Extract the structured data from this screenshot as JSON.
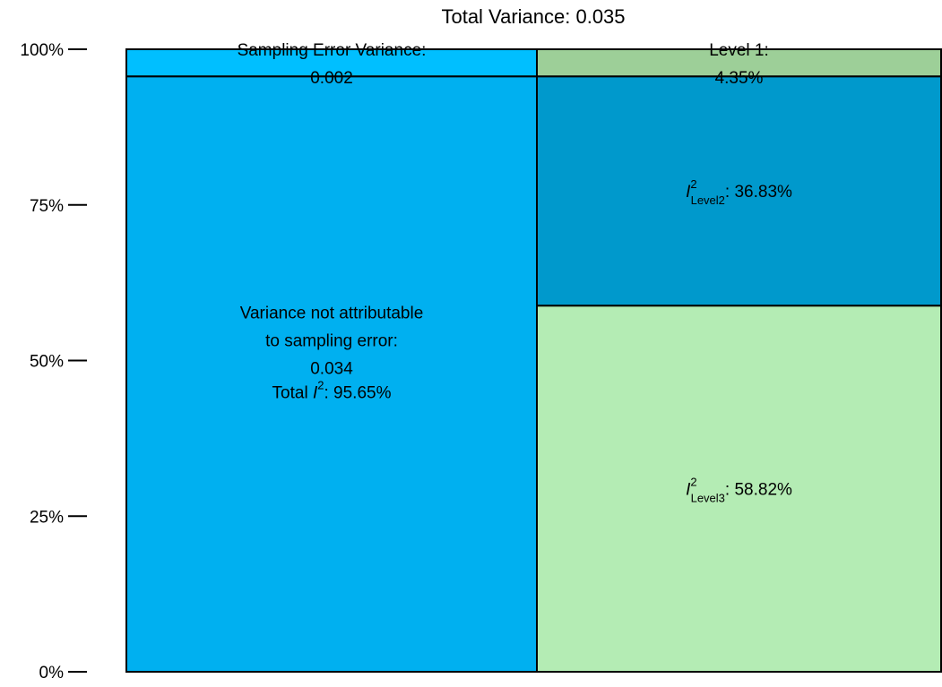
{
  "chart_data": {
    "type": "stacked-columns",
    "title": "Total Variance: 0.035",
    "ylim": [
      0,
      100
    ],
    "yticks": [
      {
        "value": 0,
        "label": "0%"
      },
      {
        "value": 25,
        "label": "25%"
      },
      {
        "value": 50,
        "label": "50%"
      },
      {
        "value": 75,
        "label": "75%"
      },
      {
        "value": 100,
        "label": "100%"
      }
    ],
    "columns": [
      {
        "segments": [
          {
            "value": 95.65,
            "color": "#00b0f0",
            "lines": [
              "Variance not attributable",
              "to sampling error:",
              "0.034"
            ],
            "label": {
              "prefix": "Total ",
              "symbol": "I",
              "sup": "2",
              "suffix": ": 95.65%"
            }
          },
          {
            "value": 4.35,
            "color": "#00bfff",
            "lines": [
              "Sampling Error Variance:",
              "0.002"
            ]
          }
        ]
      },
      {
        "segments": [
          {
            "value": 58.82,
            "color": "#b4ecb4",
            "label": {
              "symbol": "I",
              "sup": "2",
              "sub": "Level3",
              "suffix": ": 58.82%"
            }
          },
          {
            "value": 36.83,
            "color": "#0099cc",
            "label": {
              "symbol": "I",
              "sup": "2",
              "sub": "Level2",
              "suffix": ": 36.83%"
            }
          },
          {
            "value": 4.35,
            "color": "#9dcf98",
            "lines": [
              "Level 1:",
              "4.35%"
            ]
          }
        ]
      }
    ]
  }
}
